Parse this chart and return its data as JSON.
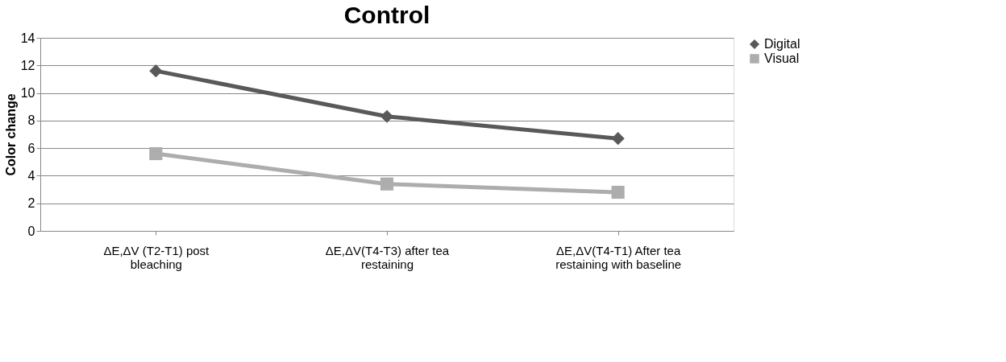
{
  "chart_data": {
    "type": "line",
    "title": "Control",
    "ylabel": "Color change",
    "categories": [
      "ΔE,ΔV (T2-T1) post bleaching",
      "ΔE,ΔV(T4-T3) after tea restaining",
      "ΔE,ΔV(T4-T1) After tea restaining with baseline"
    ],
    "series": [
      {
        "name": "Digital",
        "color": "#595959",
        "marker": "diamond",
        "values": [
          11.6,
          8.3,
          6.7
        ]
      },
      {
        "name": "Visual",
        "color": "#adadad",
        "marker": "square",
        "values": [
          5.6,
          3.4,
          2.8
        ]
      }
    ],
    "ylim": [
      0,
      14
    ],
    "yticks": [
      0,
      2,
      4,
      6,
      8,
      10,
      12,
      14
    ],
    "grid": "y",
    "legend": "right",
    "line_style": "solid"
  }
}
